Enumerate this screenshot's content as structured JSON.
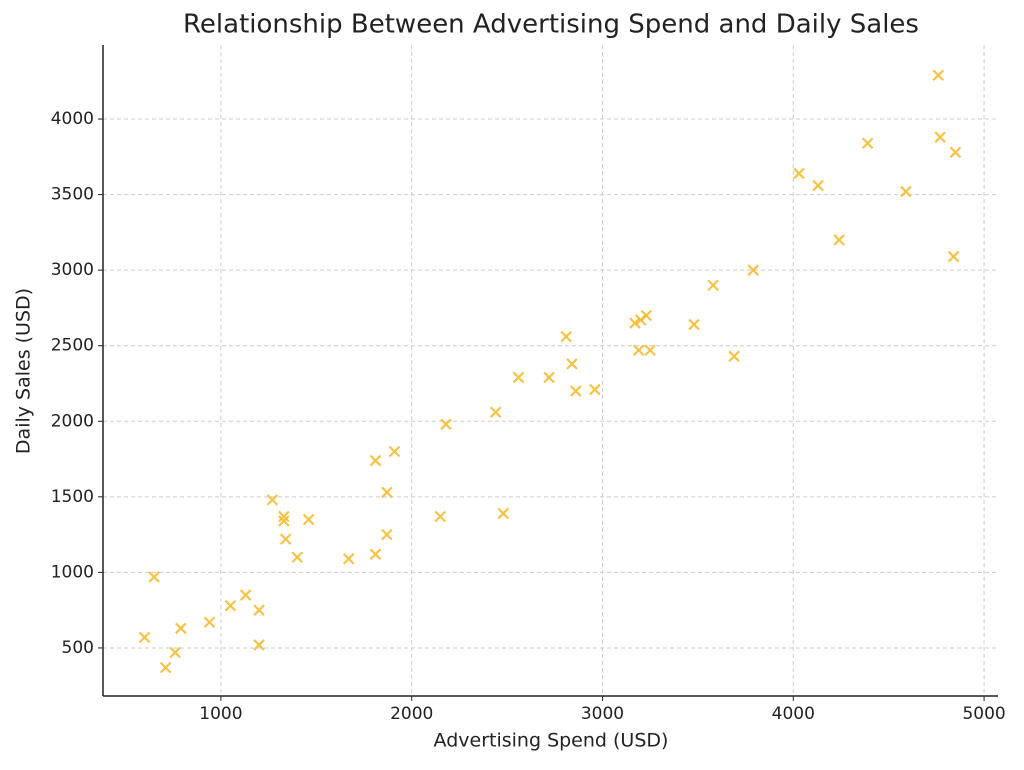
{
  "chart_data": {
    "type": "scatter",
    "title": "Relationship Between Advertising Spend and Daily Sales",
    "x_label": "Advertising Spend (USD)",
    "y_label": "Daily Sales (USD)",
    "color": "#f2b928",
    "marker": "x",
    "grid": true,
    "xlim": [
      382,
      5073
    ],
    "ylim": [
      182,
      4490
    ],
    "xticks": [
      1000,
      2000,
      3000,
      4000,
      5000
    ],
    "yticks": [
      500,
      1000,
      1500,
      2000,
      2500,
      3000,
      3500,
      4000
    ],
    "x": [
      4760,
      4770,
      4850,
      4390,
      4030,
      4130,
      4590,
      4240,
      4840,
      3790,
      3580,
      3170,
      3200,
      3230,
      3480,
      2810,
      3190,
      3250,
      3690,
      2840,
      2560,
      2720,
      2860,
      2960,
      2440,
      2180,
      1810,
      1910,
      1870,
      1270,
      1330,
      1330,
      1460,
      2150,
      2480,
      1340,
      1870,
      1400,
      1670,
      1810,
      650,
      1130,
      1050,
      1200,
      940,
      790,
      600,
      1200,
      760,
      710
    ],
    "y": [
      4290,
      3880,
      3780,
      3840,
      3640,
      3560,
      3520,
      3200,
      3090,
      3000,
      2900,
      2650,
      2670,
      2700,
      2640,
      2560,
      2470,
      2470,
      2430,
      2380,
      2290,
      2290,
      2200,
      2210,
      2060,
      1980,
      1740,
      1800,
      1530,
      1480,
      1370,
      1340,
      1350,
      1370,
      1390,
      1220,
      1250,
      1100,
      1090,
      1120,
      970,
      850,
      780,
      750,
      670,
      630,
      570,
      520,
      470,
      370
    ]
  }
}
